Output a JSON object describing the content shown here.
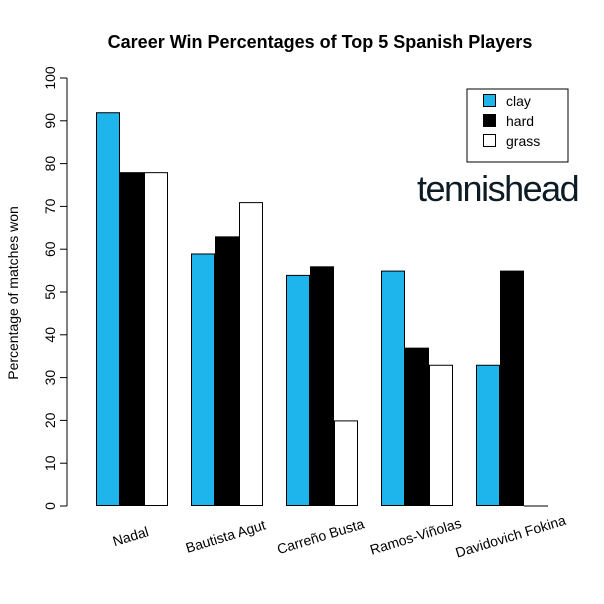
{
  "chart_data": {
    "type": "bar",
    "title": "Career Win Percentages of Top 5 Spanish Players",
    "xlabel": "",
    "ylabel": "Percentage of matches won",
    "ylim": [
      0,
      100
    ],
    "yticks": [
      "0",
      "10",
      "20",
      "30",
      "40",
      "50",
      "60",
      "70",
      "80",
      "90",
      "100"
    ],
    "grid": false,
    "legend_position": "top-right",
    "categories": [
      "Nadal",
      "Bautista Agut",
      "Carreño Busta",
      "Ramos-Viñolas",
      "Davidovich Fokina"
    ],
    "series": [
      {
        "name": "clay",
        "color": "#1eb4ec",
        "values": [
          92,
          59,
          54,
          55,
          33
        ]
      },
      {
        "name": "hard",
        "color": "#000000",
        "values": [
          78,
          63,
          56,
          37,
          55
        ]
      },
      {
        "name": "grass",
        "color": "#ffffff",
        "values": [
          78,
          71,
          20,
          33,
          0
        ]
      }
    ]
  },
  "logo": {
    "part1": "tennis",
    "part2": "head"
  }
}
